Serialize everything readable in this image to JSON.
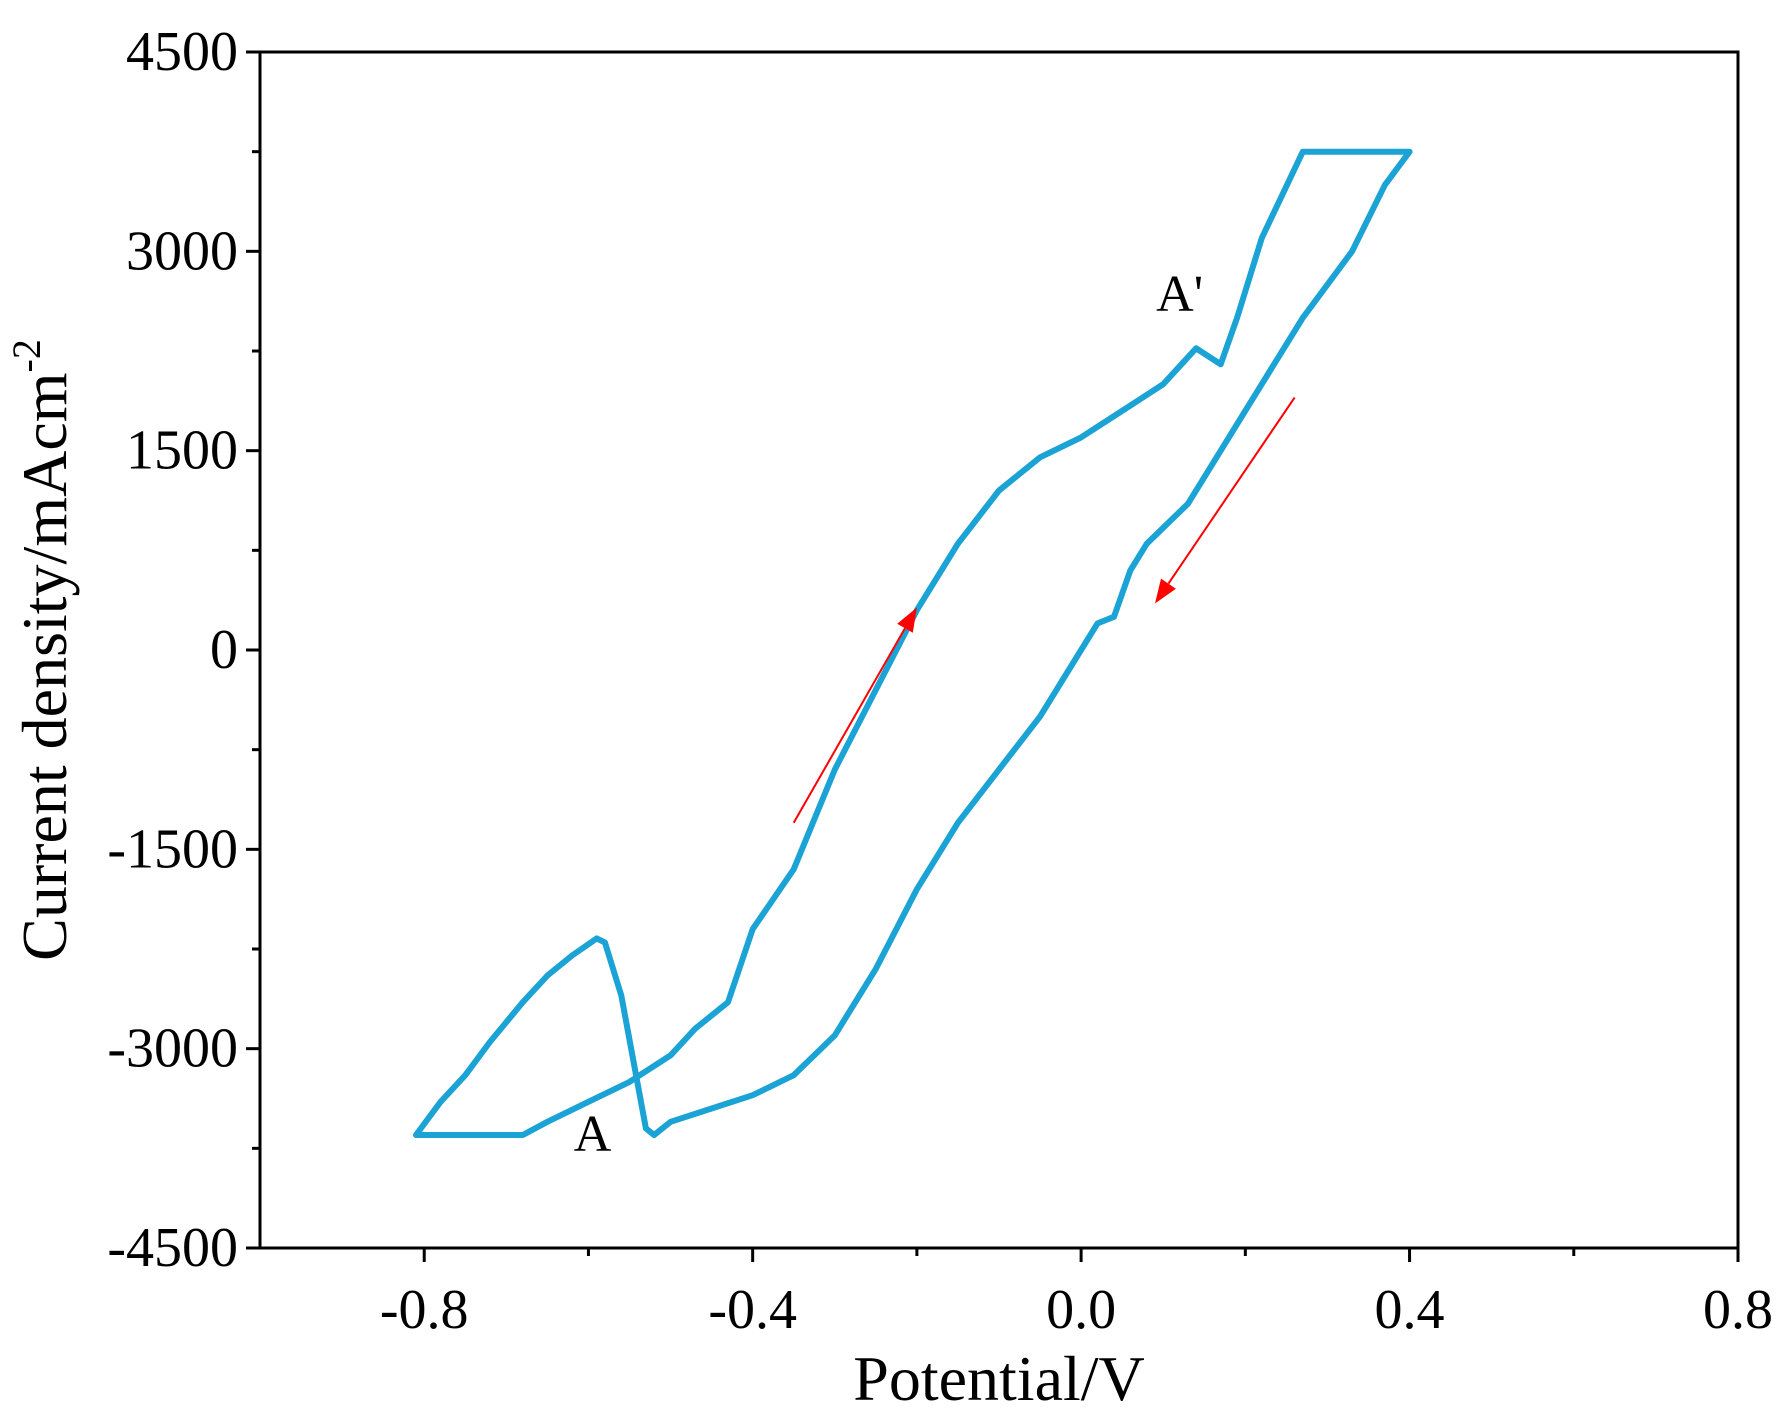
{
  "chart_data": {
    "type": "line",
    "title": "",
    "xlabel": "Potential/V",
    "ylabel_main": "Current density/mAcm",
    "ylabel_sup": "-2",
    "xlim": [
      -1.0,
      0.8
    ],
    "ylim": [
      -4500,
      4500
    ],
    "x_ticks": [
      -0.8,
      -0.4,
      0.0,
      0.4,
      0.8
    ],
    "x_tick_labels": [
      "-0.8",
      "-0.4",
      "0.0",
      "0.4",
      "0.8"
    ],
    "y_ticks": [
      -4500,
      -3000,
      -1500,
      0,
      1500,
      3000,
      4500
    ],
    "y_tick_labels": [
      "-4500",
      "-3000",
      "-1500",
      "0",
      "1500",
      "3000",
      "4500"
    ],
    "grid": false,
    "series": [
      {
        "color": "#1aa3d4",
        "points": [
          [
            -0.81,
            -3650
          ],
          [
            -0.68,
            -3650
          ],
          [
            -0.65,
            -3550
          ],
          [
            -0.6,
            -3400
          ],
          [
            -0.55,
            -3250
          ],
          [
            -0.5,
            -3050
          ],
          [
            -0.47,
            -2850
          ],
          [
            -0.43,
            -2650
          ],
          [
            -0.4,
            -2100
          ],
          [
            -0.35,
            -1650
          ],
          [
            -0.3,
            -900
          ],
          [
            -0.25,
            -300
          ],
          [
            -0.2,
            300
          ],
          [
            -0.15,
            800
          ],
          [
            -0.1,
            1200
          ],
          [
            -0.05,
            1450
          ],
          [
            0.0,
            1600
          ],
          [
            0.05,
            1800
          ],
          [
            0.1,
            2000
          ],
          [
            0.14,
            2270
          ],
          [
            0.17,
            2150
          ],
          [
            0.19,
            2500
          ],
          [
            0.22,
            3100
          ],
          [
            0.27,
            3750
          ],
          [
            0.4,
            3750
          ],
          [
            0.37,
            3500
          ],
          [
            0.33,
            3000
          ],
          [
            0.27,
            2500
          ],
          [
            0.2,
            1800
          ],
          [
            0.13,
            1100
          ],
          [
            0.08,
            800
          ],
          [
            0.06,
            600
          ],
          [
            0.04,
            250
          ],
          [
            0.02,
            200
          ],
          [
            0.0,
            0
          ],
          [
            -0.05,
            -500
          ],
          [
            -0.1,
            -900
          ],
          [
            -0.15,
            -1300
          ],
          [
            -0.2,
            -1800
          ],
          [
            -0.25,
            -2400
          ],
          [
            -0.3,
            -2900
          ],
          [
            -0.35,
            -3200
          ],
          [
            -0.4,
            -3350
          ],
          [
            -0.45,
            -3450
          ],
          [
            -0.5,
            -3550
          ],
          [
            -0.52,
            -3650
          ],
          [
            -0.53,
            -3600
          ],
          [
            -0.56,
            -2600
          ],
          [
            -0.58,
            -2200
          ],
          [
            -0.59,
            -2170
          ],
          [
            -0.62,
            -2300
          ],
          [
            -0.65,
            -2450
          ],
          [
            -0.68,
            -2650
          ],
          [
            -0.72,
            -2950
          ],
          [
            -0.75,
            -3200
          ],
          [
            -0.78,
            -3400
          ],
          [
            -0.81,
            -3650
          ]
        ]
      }
    ],
    "annotations": [
      {
        "text": "A",
        "x": -0.595,
        "y": -3770
      },
      {
        "text": "A'",
        "x": 0.12,
        "y": 2550
      }
    ],
    "arrows": [
      {
        "from": [
          -0.35,
          -1300
        ],
        "to": [
          -0.2,
          320
        ],
        "color": "#ff0000"
      },
      {
        "from": [
          0.26,
          1900
        ],
        "to": [
          0.09,
          350
        ],
        "color": "#ff0000"
      }
    ]
  }
}
